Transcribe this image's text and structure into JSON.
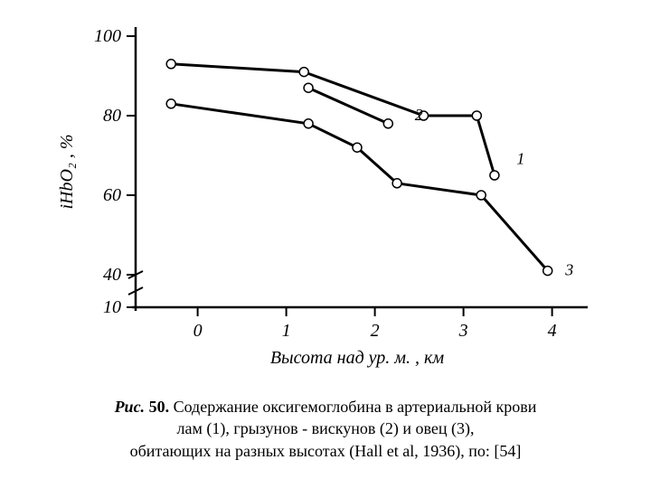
{
  "chart": {
    "type": "line",
    "background_color": "#ffffff",
    "axis_color": "#000000",
    "axis_linewidth": 2.5,
    "tick_linewidth": 2,
    "x": {
      "label": "Высота над ур. м. , км",
      "ticks": [
        0,
        1,
        2,
        3,
        4
      ],
      "lim": [
        -0.7,
        4.3
      ]
    },
    "y": {
      "label": "iHbO₂ , %",
      "ticks": [
        10,
        40,
        60,
        80,
        100
      ],
      "lim": [
        5,
        105
      ],
      "break_between": [
        10,
        40
      ]
    },
    "marker": {
      "shape": "circle",
      "radius": 5,
      "fill": "#ffffff",
      "stroke": "#000000",
      "stroke_width": 1.5
    },
    "line": {
      "stroke": "#000000",
      "stroke_width": 3
    },
    "series": [
      {
        "name": "1",
        "label": "1",
        "points": [
          {
            "x": -0.3,
            "y": 93
          },
          {
            "x": 1.2,
            "y": 91
          },
          {
            "x": 2.55,
            "y": 80
          },
          {
            "x": 3.15,
            "y": 80
          },
          {
            "x": 3.35,
            "y": 65
          }
        ],
        "label_pos": {
          "x": 3.6,
          "y": 69
        }
      },
      {
        "name": "2",
        "label": "2",
        "points": [
          {
            "x": 1.25,
            "y": 87
          },
          {
            "x": 2.15,
            "y": 78
          }
        ],
        "label_pos": {
          "x": 2.45,
          "y": 80
        }
      },
      {
        "name": "3",
        "label": "3",
        "points": [
          {
            "x": -0.3,
            "y": 83
          },
          {
            "x": 1.25,
            "y": 78
          },
          {
            "x": 1.8,
            "y": 72
          },
          {
            "x": 2.25,
            "y": 63
          },
          {
            "x": 3.2,
            "y": 60
          },
          {
            "x": 3.95,
            "y": 41
          }
        ],
        "label_pos": {
          "x": 4.15,
          "y": 41
        }
      }
    ]
  },
  "caption": {
    "fig_label": "Рис.",
    "fig_num": "50.",
    "line1_rest": "Содержание оксигемоглобина в артериальной крови",
    "line2": "лам (1), грызунов - вискунов (2)  и овец (3),",
    "line3": "обитающих на разных высотах (Hall et al, 1936), по: [54]"
  }
}
